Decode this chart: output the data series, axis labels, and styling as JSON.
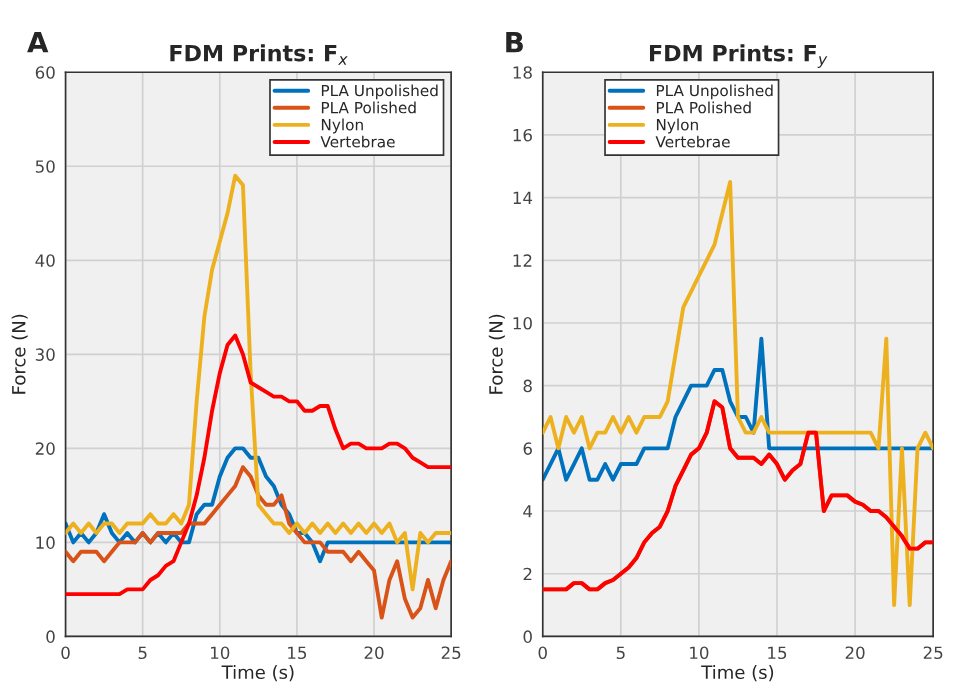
{
  "chart_data": [
    {
      "type": "line",
      "title": "FDM Prints: F$_{x}$",
      "xlabel": "Time (s)",
      "ylabel": "Force (N)",
      "annotations": [
        "A"
      ],
      "x": [
        0,
        0.5,
        1,
        1.5,
        2,
        2.5,
        3,
        3.5,
        4,
        4.5,
        5,
        5.5,
        6,
        6.5,
        7,
        7.5,
        8,
        8.5,
        9,
        9.5,
        10,
        10.5,
        11,
        11.5,
        12,
        12.5,
        13,
        13.5,
        14,
        14.5,
        15,
        15.5,
        16,
        16.5,
        17,
        17.5,
        18,
        18.5,
        19,
        19.5,
        20,
        20.5,
        21,
        21.5,
        22,
        22.5,
        23,
        23.5,
        24,
        24.5,
        25
      ],
      "series": [
        {
          "name": "PLA Unpolished",
          "color": "#0072bd",
          "values": [
            12,
            10,
            11,
            10,
            11,
            13,
            11,
            10,
            11,
            10,
            11,
            10,
            11,
            10,
            11,
            10,
            10,
            13,
            14,
            14,
            17,
            19,
            20,
            20,
            19,
            19,
            17,
            16,
            14,
            13,
            11,
            11,
            10,
            8,
            10,
            10,
            10,
            10,
            10,
            10,
            10,
            10,
            10,
            10,
            10,
            10,
            10,
            10,
            10,
            10,
            10
          ]
        },
        {
          "name": "PLA Polished",
          "color": "#d95319",
          "values": [
            9,
            8,
            9,
            9,
            9,
            8,
            9,
            10,
            10,
            10,
            11,
            10,
            11,
            11,
            11,
            11,
            12,
            12,
            12,
            13,
            14,
            15,
            16,
            18,
            17,
            15,
            14,
            14,
            15,
            12,
            11,
            10,
            10,
            10,
            9,
            9,
            9,
            8,
            9,
            8,
            7,
            2,
            6,
            8,
            4,
            2,
            3,
            6,
            3,
            6,
            8
          ]
        },
        {
          "name": "Nylon",
          "color": "#edb120",
          "values": [
            11,
            12,
            11,
            12,
            11,
            12,
            12,
            11,
            12,
            12,
            12,
            13,
            12,
            12,
            13,
            12,
            14,
            25,
            34,
            39,
            42,
            45,
            49,
            48,
            28,
            14,
            13,
            12,
            12,
            11,
            12,
            11,
            12,
            11,
            12,
            11,
            12,
            11,
            12,
            11,
            12,
            11,
            12,
            10,
            11,
            5,
            11,
            10,
            11,
            11,
            11
          ]
        },
        {
          "name": "Vertebrae",
          "color": "#ff0000",
          "values": [
            4.5,
            4.5,
            4.5,
            4.5,
            4.5,
            4.5,
            4.5,
            4.5,
            5,
            5,
            5,
            6,
            6.5,
            7.5,
            8,
            10,
            12,
            15,
            19,
            24,
            28,
            31,
            32,
            30,
            27,
            26.5,
            26,
            25.5,
            25.5,
            25,
            25,
            24,
            24,
            24.5,
            24.5,
            22,
            20,
            20.5,
            20.5,
            20,
            20,
            20,
            20.5,
            20.5,
            20,
            19,
            18.5,
            18,
            18,
            18,
            18
          ]
        }
      ],
      "xlim": [
        0,
        25
      ],
      "xticks": [
        0,
        5,
        10,
        15,
        20,
        25
      ],
      "ylim": [
        0,
        60
      ],
      "yticks": [
        0,
        10,
        20,
        30,
        40,
        50,
        60
      ],
      "grid": true,
      "legend": "top right"
    },
    {
      "type": "line",
      "title": "FDM Prints: F$_{y}$",
      "xlabel": "Time (s)",
      "ylabel": "Force (N)",
      "annotations": [
        "B"
      ],
      "x": [
        0,
        0.5,
        1,
        1.5,
        2,
        2.5,
        3,
        3.5,
        4,
        4.5,
        5,
        5.5,
        6,
        6.5,
        7,
        7.5,
        8,
        8.5,
        9,
        9.5,
        10,
        10.5,
        11,
        11.5,
        12,
        12.5,
        13,
        13.5,
        14,
        14.5,
        15,
        15.5,
        16,
        16.5,
        17,
        17.5,
        18,
        18.5,
        19,
        19.5,
        20,
        20.5,
        21,
        21.5,
        22,
        22.5,
        23,
        23.5,
        24,
        24.5,
        25
      ],
      "series": [
        {
          "name": "PLA Unpolished",
          "color": "#0072bd",
          "values": [
            5,
            5.5,
            6,
            5,
            5.5,
            6,
            5,
            5,
            5.5,
            5,
            5.5,
            5.5,
            5.5,
            6,
            6,
            6,
            6,
            7,
            7.5,
            8,
            8,
            8,
            8.5,
            8.5,
            7.5,
            7,
            7,
            6.5,
            9.5,
            6,
            6,
            6,
            6,
            6,
            6,
            6,
            6,
            6,
            6,
            6,
            6,
            6,
            6,
            6,
            6,
            6,
            6,
            6,
            6,
            6,
            6
          ]
        },
        {
          "name": "PLA Polished",
          "color": "#d95319",
          "values": [
            1.5,
            1.5,
            1.5,
            1.5,
            1.7,
            1.7,
            1.5,
            1.5,
            1.7,
            1.8,
            2,
            2.2,
            2.5,
            3,
            3.3,
            3.5,
            4,
            4.8,
            5.3,
            5.8,
            6,
            6.5,
            7.5,
            7.3,
            6,
            5.7,
            5.7,
            5.7,
            5.5,
            5.8,
            5.5,
            5,
            5.3,
            5.5,
            6.5,
            6.5,
            4,
            4.5,
            4.5,
            4.5,
            4.3,
            4.2,
            4,
            4,
            3.8,
            3.5,
            3.2,
            2.8,
            2.8,
            3,
            3
          ]
        },
        {
          "name": "Nylon",
          "color": "#edb120",
          "values": [
            6.5,
            7,
            6,
            7,
            6.5,
            7,
            6,
            6.5,
            6.5,
            7,
            6.5,
            7,
            6.5,
            7,
            7,
            7,
            7.5,
            9,
            10.5,
            11,
            11.5,
            12,
            12.5,
            13.5,
            14.5,
            7,
            6.5,
            6.5,
            7,
            6.5,
            6.5,
            6.5,
            6.5,
            6.5,
            6.5,
            6.5,
            6.5,
            6.5,
            6.5,
            6.5,
            6.5,
            6.5,
            6.5,
            6,
            9.5,
            1,
            6,
            1,
            6,
            6.5,
            6
          ]
        },
        {
          "name": "Vertebrae",
          "color": "#ff0000",
          "values": [
            1.5,
            1.5,
            1.5,
            1.5,
            1.7,
            1.7,
            1.5,
            1.5,
            1.7,
            1.8,
            2,
            2.2,
            2.5,
            3,
            3.3,
            3.5,
            4,
            4.8,
            5.3,
            5.8,
            6,
            6.5,
            7.5,
            7.3,
            6,
            5.7,
            5.7,
            5.7,
            5.5,
            5.8,
            5.5,
            5,
            5.3,
            5.5,
            6.5,
            6.5,
            4,
            4.5,
            4.5,
            4.5,
            4.3,
            4.2,
            4,
            4,
            3.8,
            3.5,
            3.2,
            2.8,
            2.8,
            3,
            3
          ]
        }
      ],
      "xlim": [
        0,
        25
      ],
      "xticks": [
        0,
        5,
        10,
        15,
        20,
        25
      ],
      "ylim": [
        0,
        18
      ],
      "yticks": [
        0,
        2,
        4,
        6,
        8,
        10,
        12,
        14,
        16,
        18
      ],
      "grid": true,
      "legend": "top left"
    }
  ]
}
